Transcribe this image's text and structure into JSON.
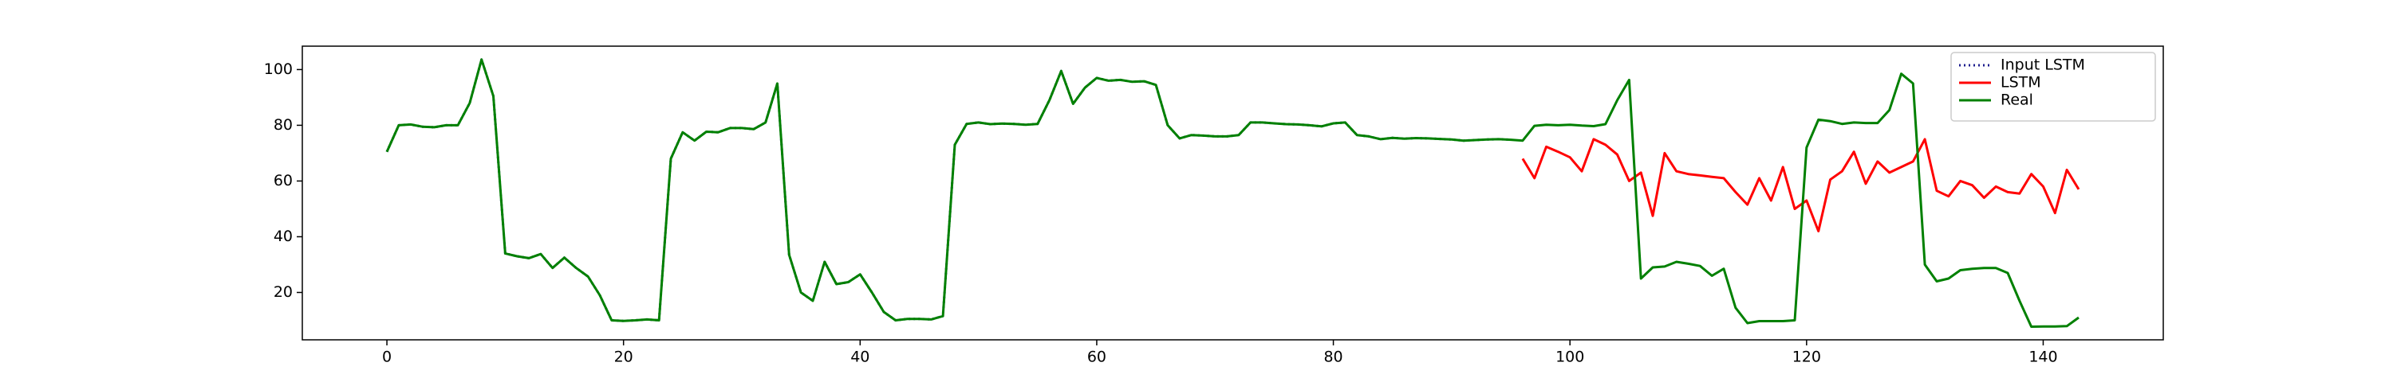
{
  "chart_data": {
    "type": "line",
    "x": [
      0,
      1,
      2,
      3,
      4,
      5,
      6,
      7,
      8,
      9,
      10,
      11,
      12,
      13,
      14,
      15,
      16,
      17,
      18,
      19,
      20,
      21,
      22,
      23,
      24,
      25,
      26,
      27,
      28,
      29,
      30,
      31,
      32,
      33,
      34,
      35,
      36,
      37,
      38,
      39,
      40,
      41,
      42,
      43,
      44,
      45,
      46,
      47,
      48,
      49,
      50,
      51,
      52,
      53,
      54,
      55,
      56,
      57,
      58,
      59,
      60,
      61,
      62,
      63,
      64,
      65,
      66,
      67,
      68,
      69,
      70,
      71,
      72,
      73,
      74,
      75,
      76,
      77,
      78,
      79,
      80,
      81,
      82,
      83,
      84,
      85,
      86,
      87,
      88,
      89,
      90,
      91,
      92,
      93,
      94,
      95,
      96,
      97,
      98,
      99,
      100,
      101,
      102,
      103,
      104,
      105,
      106,
      107,
      108,
      109,
      110,
      111,
      112,
      113,
      114,
      115,
      116,
      117,
      118,
      119,
      120,
      121,
      122,
      123,
      124,
      125,
      126,
      127,
      128,
      129,
      130,
      131,
      132,
      133,
      134,
      135,
      136,
      137,
      138,
      139,
      140,
      141,
      142,
      143
    ],
    "series": [
      {
        "name": "Input LSTM",
        "color": "#1f1f8f",
        "dash": "dotted",
        "values": [
          70.5,
          80,
          80.3,
          79.5,
          79.3,
          80,
          80,
          88,
          103.6,
          90.5,
          34,
          33,
          32.3,
          33.8,
          28.8,
          32.5,
          28.8,
          25.7,
          19,
          10,
          9.8,
          10,
          10.3,
          10,
          68,
          77.5,
          74.5,
          77.7,
          77.5,
          79,
          79,
          78.6,
          81,
          95,
          33.5,
          20,
          17,
          31,
          23,
          23.7,
          26.5,
          20,
          13,
          10,
          10.5,
          10.5,
          10.3,
          11.5,
          73,
          80.5,
          81,
          80.4,
          80.6,
          80.5,
          80.2,
          80.5,
          89,
          99.5,
          87.7,
          93.5,
          97,
          96,
          96.3,
          95.6,
          95.8,
          94.5,
          80,
          75.3,
          76.5,
          76.3,
          76,
          76,
          76.5,
          81,
          81,
          80.7,
          80.4,
          80.3,
          80,
          79.6,
          80.7,
          81,
          76.5,
          76,
          75,
          75.5,
          75.2,
          75.4,
          75.3,
          75.1,
          74.9,
          74.5,
          74.7,
          74.9,
          75,
          74.8,
          null,
          null,
          null,
          null,
          null,
          null,
          null,
          null,
          null,
          null,
          null,
          null,
          null,
          null,
          null,
          null,
          null,
          null,
          null,
          null,
          null,
          null,
          null,
          null,
          null,
          null,
          null,
          null,
          null,
          null,
          null,
          null,
          null,
          null,
          null,
          null,
          null,
          null,
          null,
          null,
          null,
          null,
          null,
          null,
          null,
          null,
          null,
          null
        ]
      },
      {
        "name": "LSTM",
        "color": "#ff0000",
        "dash": "solid",
        "values": [
          null,
          null,
          null,
          null,
          null,
          null,
          null,
          null,
          null,
          null,
          null,
          null,
          null,
          null,
          null,
          null,
          null,
          null,
          null,
          null,
          null,
          null,
          null,
          null,
          null,
          null,
          null,
          null,
          null,
          null,
          null,
          null,
          null,
          null,
          null,
          null,
          null,
          null,
          null,
          null,
          null,
          null,
          null,
          null,
          null,
          null,
          null,
          null,
          null,
          null,
          null,
          null,
          null,
          null,
          null,
          null,
          null,
          null,
          null,
          null,
          null,
          null,
          null,
          null,
          null,
          null,
          null,
          null,
          null,
          null,
          null,
          null,
          null,
          null,
          null,
          null,
          null,
          null,
          null,
          null,
          null,
          null,
          null,
          null,
          null,
          null,
          null,
          null,
          null,
          null,
          null,
          null,
          null,
          null,
          null,
          null,
          68,
          61,
          72.3,
          70.5,
          68.5,
          63.5,
          75,
          73,
          69.5,
          60,
          63,
          47.5,
          70,
          63.5,
          62.5,
          62,
          61.5,
          61,
          56,
          51.5,
          61,
          53,
          65,
          50,
          53,
          42,
          60.5,
          63.5,
          70.5,
          59,
          67,
          63,
          65,
          67,
          75,
          56.5,
          54.5,
          60,
          58.5,
          54,
          58,
          56,
          55.5,
          62.5,
          58,
          48.5,
          64,
          57
        ]
      },
      {
        "name": "Real",
        "color": "#008000",
        "dash": "solid",
        "values": [
          70.5,
          80,
          80.3,
          79.5,
          79.3,
          80,
          80,
          88,
          103.6,
          90.5,
          34,
          33,
          32.3,
          33.8,
          28.8,
          32.5,
          28.8,
          25.7,
          19,
          10,
          9.8,
          10,
          10.3,
          10,
          68,
          77.5,
          74.5,
          77.7,
          77.5,
          79,
          79,
          78.6,
          81,
          95,
          33.5,
          20,
          17,
          31,
          23,
          23.7,
          26.5,
          20,
          13,
          10,
          10.5,
          10.5,
          10.3,
          11.5,
          73,
          80.5,
          81,
          80.4,
          80.6,
          80.5,
          80.2,
          80.5,
          89,
          99.5,
          87.7,
          93.5,
          97,
          96,
          96.3,
          95.6,
          95.8,
          94.5,
          80,
          75.3,
          76.5,
          76.3,
          76,
          76,
          76.5,
          81,
          81,
          80.7,
          80.4,
          80.3,
          80,
          79.6,
          80.7,
          81,
          76.5,
          76,
          75,
          75.5,
          75.2,
          75.4,
          75.3,
          75.1,
          74.9,
          74.5,
          74.7,
          74.9,
          75,
          74.8,
          74.5,
          79.8,
          80.2,
          80,
          80.2,
          79.9,
          79.7,
          80.4,
          89,
          96.3,
          25,
          29,
          29.3,
          31,
          30.3,
          29.5,
          26,
          28.5,
          14.5,
          9,
          9.7,
          9.7,
          9.7,
          10,
          72,
          82,
          81.5,
          80.5,
          81,
          80.8,
          80.8,
          85.5,
          98.5,
          95,
          30,
          24,
          25,
          28,
          28.5,
          28.8,
          28.8,
          27,
          17,
          7.7,
          7.8,
          7.8,
          7.9,
          11
        ]
      }
    ],
    "xlim": [
      -7.15,
      150.15
    ],
    "ylim": [
      3.0,
      108.4
    ],
    "xticks": [
      0,
      20,
      40,
      60,
      80,
      100,
      120,
      140
    ],
    "yticks": [
      20,
      40,
      60,
      80,
      100
    ],
    "legend": "upper right",
    "grid": false
  }
}
